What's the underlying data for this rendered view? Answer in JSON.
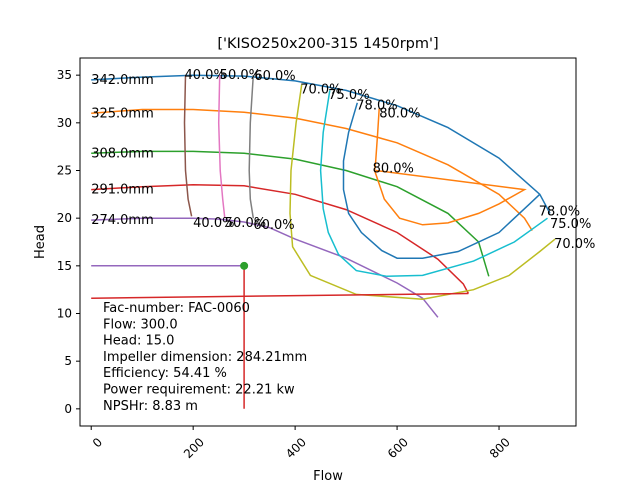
{
  "chart_data": {
    "type": "line",
    "title": "['KISO250x200-315 1450rpm']",
    "xlabel": "Flow",
    "ylabel": "Head",
    "xlim": [
      -22,
      951
    ],
    "ylim": [
      -1.8,
      36.8
    ],
    "xticks": [
      0,
      200,
      400,
      600,
      800
    ],
    "yticks": [
      0,
      5,
      10,
      15,
      20,
      25,
      30,
      35
    ],
    "grid": false,
    "impeller_curves": [
      {
        "label": "342.0mm",
        "color": "#1f77b4",
        "points": [
          [
            0,
            34.5
          ],
          [
            100,
            34.8
          ],
          [
            200,
            35.0
          ],
          [
            300,
            34.9
          ],
          [
            400,
            34.4
          ],
          [
            500,
            33.4
          ],
          [
            600,
            31.8
          ],
          [
            700,
            29.5
          ],
          [
            800,
            26.3
          ],
          [
            880,
            22.5
          ],
          [
            900,
            20.5
          ]
        ]
      },
      {
        "label": "325.0mm",
        "color": "#ff7f0e",
        "points": [
          [
            0,
            31.0
          ],
          [
            100,
            31.4
          ],
          [
            200,
            31.4
          ],
          [
            300,
            31.1
          ],
          [
            400,
            30.5
          ],
          [
            500,
            29.4
          ],
          [
            600,
            27.9
          ],
          [
            700,
            25.6
          ],
          [
            800,
            22.5
          ],
          [
            850,
            20.0
          ],
          [
            865,
            18.7
          ]
        ]
      },
      {
        "label": "308.0mm",
        "color": "#2ca02c",
        "points": [
          [
            0,
            26.8
          ],
          [
            100,
            27.0
          ],
          [
            200,
            27.0
          ],
          [
            300,
            26.8
          ],
          [
            400,
            26.2
          ],
          [
            500,
            25.0
          ],
          [
            600,
            23.3
          ],
          [
            700,
            20.5
          ],
          [
            760,
            17.5
          ],
          [
            780,
            13.9
          ]
        ]
      },
      {
        "label": "291.0mm",
        "color": "#d62728",
        "points": [
          [
            0,
            23.0
          ],
          [
            100,
            23.3
          ],
          [
            200,
            23.5
          ],
          [
            300,
            23.4
          ],
          [
            400,
            22.5
          ],
          [
            500,
            20.9
          ],
          [
            600,
            18.5
          ],
          [
            680,
            15.7
          ],
          [
            730,
            13.1
          ],
          [
            740,
            12.1
          ]
        ]
      },
      {
        "label": "274.0mm",
        "color": "#9467bd",
        "points": [
          [
            0,
            19.8
          ],
          [
            100,
            20.0
          ],
          [
            200,
            20.0
          ],
          [
            250,
            19.9
          ],
          [
            300,
            19.6
          ],
          [
            350,
            19.0
          ],
          [
            400,
            17.8
          ],
          [
            500,
            15.8
          ],
          [
            600,
            13.2
          ],
          [
            650,
            11.6
          ],
          [
            680,
            9.6
          ]
        ]
      }
    ],
    "efficiency_curves": [
      {
        "label": "40.0%",
        "color": "#8c564b",
        "points": [
          [
            185,
            35.0
          ],
          [
            183,
            30.0
          ],
          [
            185,
            25.0
          ],
          [
            190,
            22.0
          ],
          [
            197,
            20.2
          ]
        ]
      },
      {
        "label": "50.0%",
        "color": "#e377c2",
        "points": [
          [
            252,
            35.0
          ],
          [
            250,
            30.0
          ],
          [
            253,
            25.0
          ],
          [
            258,
            22.0
          ],
          [
            262,
            20.0
          ]
        ]
      },
      {
        "label": "60.0%",
        "color": "#7f7f7f",
        "points": [
          [
            318,
            35.0
          ],
          [
            312,
            30.0
          ],
          [
            310,
            25.0
          ],
          [
            312,
            22.0
          ],
          [
            318,
            20.0
          ]
        ]
      },
      {
        "label": "70.0%",
        "color": "#bcbd22",
        "points": [
          [
            413,
            34.0
          ],
          [
            402,
            30.0
          ],
          [
            392,
            25.0
          ],
          [
            390,
            20.5
          ],
          [
            395,
            17.0
          ],
          [
            430,
            14.0
          ],
          [
            520,
            12.0
          ],
          [
            650,
            11.5
          ],
          [
            750,
            12.5
          ],
          [
            820,
            14.0
          ],
          [
            880,
            16.5
          ],
          [
            910,
            17.8
          ]
        ]
      },
      {
        "label": "75.0%",
        "color": "#17becf",
        "points": [
          [
            468,
            33.4
          ],
          [
            455,
            29.0
          ],
          [
            450,
            25.0
          ],
          [
            455,
            21.0
          ],
          [
            465,
            18.5
          ],
          [
            485,
            16.2
          ],
          [
            520,
            14.5
          ],
          [
            580,
            13.9
          ],
          [
            650,
            14.0
          ],
          [
            750,
            15.5
          ],
          [
            830,
            17.5
          ],
          [
            895,
            20.0
          ]
        ]
      },
      {
        "label": "78.0%",
        "color": "#1f77b4",
        "points": [
          [
            522,
            32.1
          ],
          [
            505,
            29.0
          ],
          [
            495,
            26.0
          ],
          [
            495,
            23.0
          ],
          [
            505,
            20.5
          ],
          [
            530,
            18.5
          ],
          [
            570,
            16.6
          ],
          [
            600,
            15.8
          ],
          [
            650,
            15.8
          ],
          [
            720,
            16.5
          ],
          [
            800,
            18.5
          ],
          [
            860,
            21.5
          ],
          [
            880,
            22.5
          ]
        ]
      },
      {
        "label": "80.0%",
        "color": "#ff7f0e",
        "points": [
          [
            565,
            31.5
          ],
          [
            562,
            29.0
          ],
          [
            558,
            26.0
          ],
          [
            556,
            25.0
          ],
          [
            575,
            22.0
          ],
          [
            605,
            20.0
          ],
          [
            650,
            19.3
          ],
          [
            700,
            19.5
          ],
          [
            760,
            20.5
          ],
          [
            800,
            21.5
          ],
          [
            850,
            23.0
          ],
          [
            558,
            25.0
          ]
        ]
      }
    ],
    "efficiency_labels": [
      {
        "text": "40.0%",
        "x": 183,
        "y": 35.1
      },
      {
        "text": "50.0%",
        "x": 252,
        "y": 35.1
      },
      {
        "text": "60.0%",
        "x": 320,
        "y": 35.0
      },
      {
        "text": "70.0%",
        "x": 410,
        "y": 33.6
      },
      {
        "text": "75.0%",
        "x": 465,
        "y": 33.0
      },
      {
        "text": "78.0%",
        "x": 520,
        "y": 31.9
      },
      {
        "text": "80.0%",
        "x": 565,
        "y": 31.1
      },
      {
        "text": "80.0%",
        "x": 552,
        "y": 25.3
      },
      {
        "text": "40.0%",
        "x": 200,
        "y": 19.6
      },
      {
        "text": "50.0%",
        "x": 262,
        "y": 19.6
      },
      {
        "text": "60.0%",
        "x": 318,
        "y": 19.4
      },
      {
        "text": "78.0%",
        "x": 878,
        "y": 20.8
      },
      {
        "text": "75.0%",
        "x": 900,
        "y": 19.5
      },
      {
        "text": "70.0%",
        "x": 908,
        "y": 17.4
      }
    ],
    "operating_point": {
      "x": 300,
      "y": 15,
      "color": "#2ca02c"
    },
    "guide_lines": [
      {
        "color": "#9467bd",
        "points": [
          [
            0,
            15
          ],
          [
            300,
            15
          ]
        ]
      },
      {
        "color": "#d62728",
        "points": [
          [
            300,
            15
          ],
          [
            300,
            0
          ]
        ]
      },
      {
        "color": "#d62728",
        "points": [
          [
            0,
            11.6
          ],
          [
            740,
            12.1
          ]
        ]
      }
    ],
    "info_lines": [
      "Fac-number: FAC-0060",
      "Flow: 300.0",
      "Head: 15.0",
      "Impeller dimension: 284.21mm",
      "Efficiency: 54.41 %",
      "Power requirement: 22.21 kw",
      "NPSHr: 8.83 m"
    ]
  }
}
